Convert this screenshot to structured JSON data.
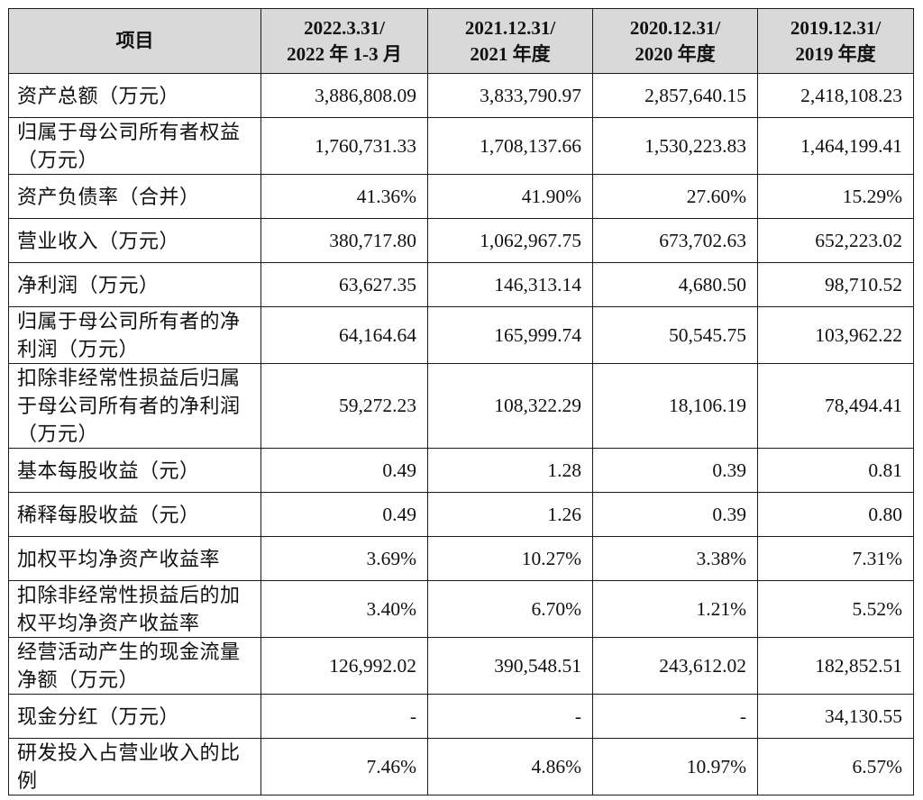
{
  "table": {
    "headers": [
      [
        "项目"
      ],
      [
        "2022.3.31/",
        "2022 年 1-3 月"
      ],
      [
        "2021.12.31/",
        "2021 年度"
      ],
      [
        "2020.12.31/",
        "2020 年度"
      ],
      [
        "2019.12.31/",
        "2019 年度"
      ]
    ],
    "rows": [
      {
        "label": "资产总额（万元）",
        "values": [
          "3,886,808.09",
          "3,833,790.97",
          "2,857,640.15",
          "2,418,108.23"
        ]
      },
      {
        "label": "归属于母公司所有者权益（万元）",
        "values": [
          "1,760,731.33",
          "1,708,137.66",
          "1,530,223.83",
          "1,464,199.41"
        ]
      },
      {
        "label": "资产负债率（合并）",
        "values": [
          "41.36%",
          "41.90%",
          "27.60%",
          "15.29%"
        ]
      },
      {
        "label": "营业收入（万元）",
        "values": [
          "380,717.80",
          "1,062,967.75",
          "673,702.63",
          "652,223.02"
        ]
      },
      {
        "label": "净利润（万元）",
        "values": [
          "63,627.35",
          "146,313.14",
          "4,680.50",
          "98,710.52"
        ]
      },
      {
        "label": "归属于母公司所有者的净利润（万元）",
        "values": [
          "64,164.64",
          "165,999.74",
          "50,545.75",
          "103,962.22"
        ]
      },
      {
        "label": "扣除非经常性损益后归属于母公司所有者的净利润（万元）",
        "values": [
          "59,272.23",
          "108,322.29",
          "18,106.19",
          "78,494.41"
        ]
      },
      {
        "label": "基本每股收益（元）",
        "values": [
          "0.49",
          "1.28",
          "0.39",
          "0.81"
        ]
      },
      {
        "label": "稀释每股收益（元）",
        "values": [
          "0.49",
          "1.26",
          "0.39",
          "0.80"
        ]
      },
      {
        "label": "加权平均净资产收益率",
        "values": [
          "3.69%",
          "10.27%",
          "3.38%",
          "7.31%"
        ]
      },
      {
        "label": "扣除非经常性损益后的加权平均净资产收益率",
        "values": [
          "3.40%",
          "6.70%",
          "1.21%",
          "5.52%"
        ]
      },
      {
        "label": "经营活动产生的现金流量净额（万元）",
        "values": [
          "126,992.02",
          "390,548.51",
          "243,612.02",
          "182,852.51"
        ]
      },
      {
        "label": "现金分红（万元）",
        "values": [
          "-",
          "-",
          "-",
          "34,130.55"
        ]
      },
      {
        "label": "研发投入占营业收入的比例",
        "values": [
          "7.46%",
          "4.86%",
          "10.97%",
          "6.57%"
        ]
      }
    ]
  },
  "colors": {
    "header_background": "#d9d9d9",
    "border": "#1a1a1a",
    "text": "#111111"
  }
}
